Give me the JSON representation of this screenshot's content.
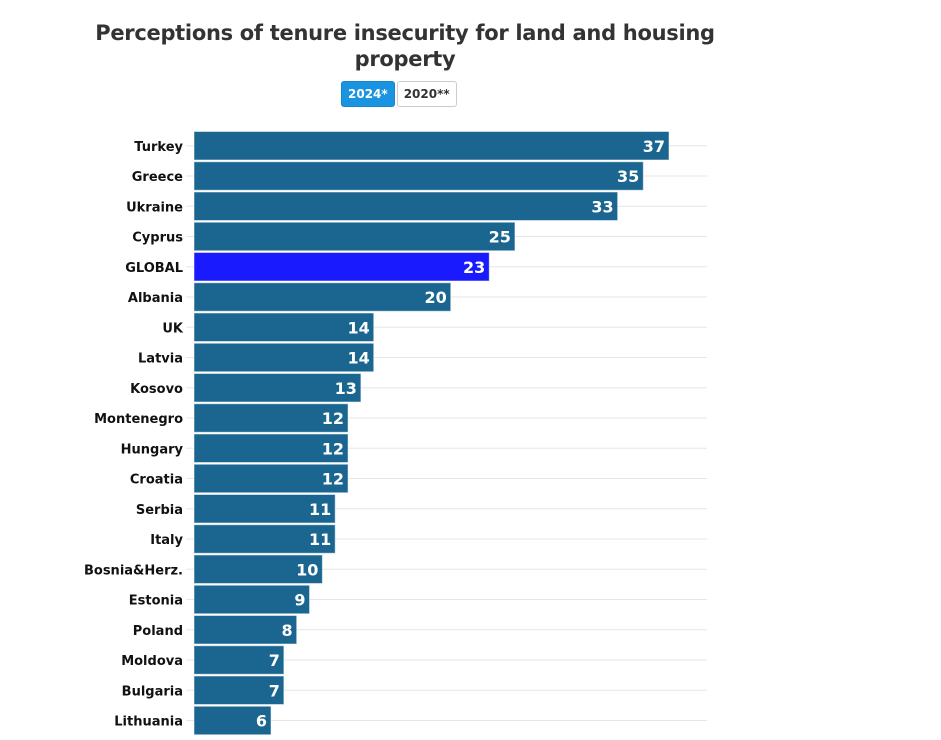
{
  "chart_data": {
    "type": "bar",
    "orientation": "horizontal",
    "title": "Perceptions of tenure insecurity for land and housing property",
    "categories": [
      "Turkey",
      "Greece",
      "Ukraine",
      "Cyprus",
      "GLOBAL",
      "Albania",
      "UK",
      "Latvia",
      "Kosovo",
      "Montenegro",
      "Hungary",
      "Croatia",
      "Serbia",
      "Italy",
      "Bosnia&Herz.",
      "Estonia",
      "Poland",
      "Moldova",
      "Bulgaria",
      "Lithuania"
    ],
    "values": [
      37,
      35,
      33,
      25,
      23,
      20,
      14,
      14,
      13,
      12,
      12,
      12,
      11,
      11,
      10,
      9,
      8,
      7,
      7,
      6
    ],
    "highlight": "GLOBAL",
    "xlabel": "",
    "ylabel": "",
    "xlim": [
      0,
      40
    ],
    "grid": true,
    "colors": {
      "bar": "#1b6690",
      "highlight": "#1a1aff",
      "label": "#ffffff"
    }
  },
  "toggle": {
    "options": [
      {
        "label": "2024*",
        "active": true
      },
      {
        "label": "2020**",
        "active": false
      }
    ],
    "active_color": "#1a94e0"
  }
}
